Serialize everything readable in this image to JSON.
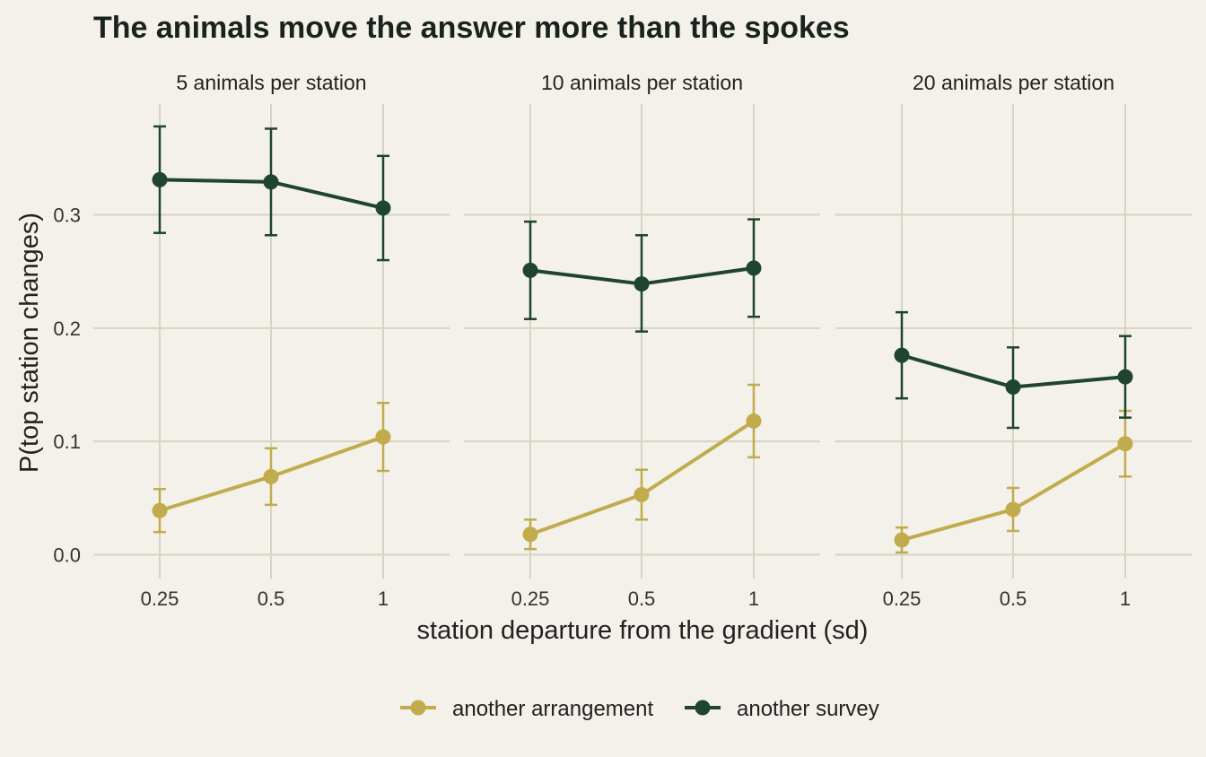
{
  "chart_data": {
    "type": "line",
    "title": "The animals move the answer more than the spokes",
    "xlabel": "station departure from the gradient (sd)",
    "ylabel": "P(top station changes)",
    "x_categories": [
      "0.25",
      "0.5",
      "1"
    ],
    "y_ticks": [
      "0.0",
      "0.1",
      "0.2",
      "0.3"
    ],
    "ylim": [
      -0.02,
      0.38
    ],
    "grid": true,
    "legend_position": "bottom",
    "colors": {
      "another arrangement": "#c2ab4d",
      "another survey": "#1f4430"
    },
    "panels": [
      {
        "label": "5 animals per station",
        "series": [
          {
            "name": "another arrangement",
            "y": [
              0.039,
              0.069,
              0.104
            ],
            "lower": [
              0.02,
              0.044,
              0.074
            ],
            "upper": [
              0.058,
              0.094,
              0.134
            ]
          },
          {
            "name": "another survey",
            "y": [
              0.331,
              0.329,
              0.306
            ],
            "lower": [
              0.284,
              0.282,
              0.26
            ],
            "upper": [
              0.378,
              0.376,
              0.352
            ]
          }
        ]
      },
      {
        "label": "10 animals per station",
        "series": [
          {
            "name": "another arrangement",
            "y": [
              0.018,
              0.053,
              0.118
            ],
            "lower": [
              0.005,
              0.031,
              0.086
            ],
            "upper": [
              0.031,
              0.075,
              0.15
            ]
          },
          {
            "name": "another survey",
            "y": [
              0.251,
              0.239,
              0.253
            ],
            "lower": [
              0.208,
              0.197,
              0.21
            ],
            "upper": [
              0.294,
              0.282,
              0.296
            ]
          }
        ]
      },
      {
        "label": "20 animals per station",
        "series": [
          {
            "name": "another arrangement",
            "y": [
              0.013,
              0.04,
              0.098
            ],
            "lower": [
              0.002,
              0.021,
              0.069
            ],
            "upper": [
              0.024,
              0.059,
              0.127
            ]
          },
          {
            "name": "another survey",
            "y": [
              0.176,
              0.148,
              0.157
            ],
            "lower": [
              0.138,
              0.112,
              0.121
            ],
            "upper": [
              0.214,
              0.183,
              0.193
            ]
          }
        ]
      }
    ]
  }
}
